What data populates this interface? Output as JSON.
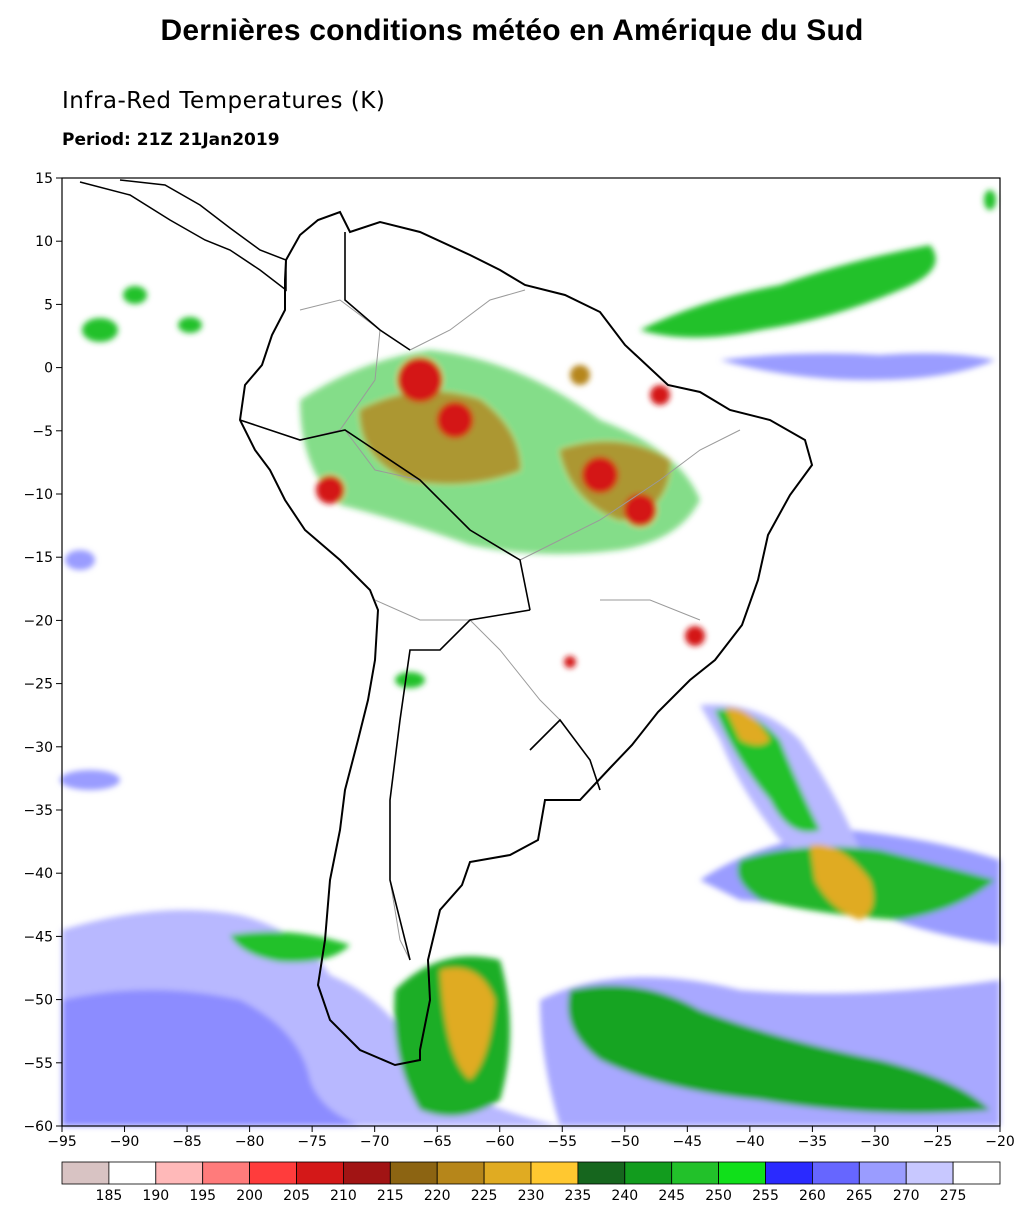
{
  "page": {
    "title": "Dernières conditions météo en Amérique du Sud"
  },
  "map": {
    "title": "Infra-Red Temperatures (K)",
    "period": "Period: 21Z 21Jan2019",
    "lon_ticks": [
      "-95",
      "-90",
      "-85",
      "-80",
      "-75",
      "-70",
      "-65",
      "-60",
      "-55",
      "-50",
      "-45",
      "-40",
      "-35",
      "-30",
      "-25",
      "-20"
    ],
    "lat_ticks": [
      "15",
      "10",
      "5",
      "0",
      "-5",
      "-10",
      "-15",
      "-20",
      "-25",
      "-30",
      "-35",
      "-40",
      "-45",
      "-50",
      "-55",
      "-60"
    ],
    "colors": {
      "coast": "#000000",
      "borders": "#9a9a9a"
    }
  },
  "legend": {
    "values": [
      "185",
      "190",
      "195",
      "200",
      "205",
      "210",
      "215",
      "220",
      "225",
      "230",
      "235",
      "240",
      "245",
      "250",
      "255",
      "260",
      "265",
      "270",
      "275"
    ],
    "colors": [
      "#d8c3c3",
      "#ffffff",
      "#ffb9b9",
      "#ff7b7b",
      "#ff3c3c",
      "#d41818",
      "#a11414",
      "#8c6412",
      "#b6861a",
      "#e0ab22",
      "#ffc830",
      "#16661e",
      "#129c1e",
      "#22c12a",
      "#10e01a",
      "#2a2aff",
      "#6666ff",
      "#9a9cff",
      "#c8c8ff",
      "#ffffff"
    ]
  }
}
